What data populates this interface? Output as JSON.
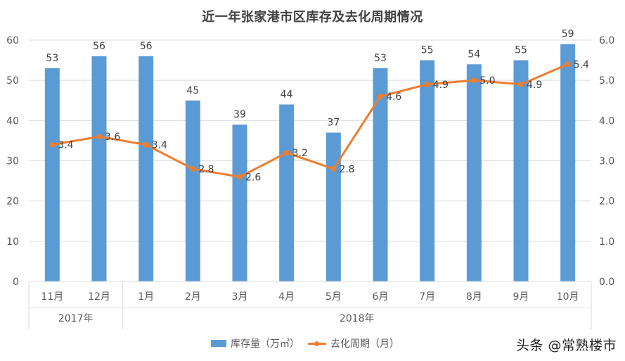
{
  "chart_data": {
    "type": "bar+line",
    "title": "近一年张家港市区库存及去化周期情况",
    "categories": [
      "11月",
      "12月",
      "1月",
      "2月",
      "3月",
      "4月",
      "5月",
      "6月",
      "7月",
      "8月",
      "9月",
      "10月"
    ],
    "category_groups": [
      {
        "label": "2017年",
        "span": 2
      },
      {
        "label": "2018年",
        "span": 10
      }
    ],
    "series": [
      {
        "name": "库存量（万㎡）",
        "type": "bar",
        "axis": "left",
        "color": "#5b9bd5",
        "values": [
          53,
          56,
          56,
          45,
          39,
          44,
          37,
          53,
          55,
          54,
          55,
          59
        ]
      },
      {
        "name": "去化周期（月）",
        "type": "line",
        "axis": "right",
        "color": "#ed7d31",
        "values": [
          3.4,
          3.6,
          3.4,
          2.8,
          2.6,
          3.2,
          2.8,
          4.6,
          4.9,
          5.0,
          4.9,
          5.4
        ]
      }
    ],
    "left_axis": {
      "ylim": [
        0,
        60
      ],
      "ticks": [
        "0",
        "10",
        "20",
        "30",
        "40",
        "50",
        "60"
      ]
    },
    "right_axis": {
      "ylim": [
        0,
        6
      ],
      "ticks": [
        "0.0",
        "1.0",
        "2.0",
        "3.0",
        "4.0",
        "5.0",
        "6.0"
      ]
    },
    "grid": true,
    "legend_position": "bottom"
  },
  "legend": {
    "bar_label": "库存量（万㎡）",
    "line_label": "去化周期（月）"
  },
  "watermark": "头条 @常熟楼市"
}
